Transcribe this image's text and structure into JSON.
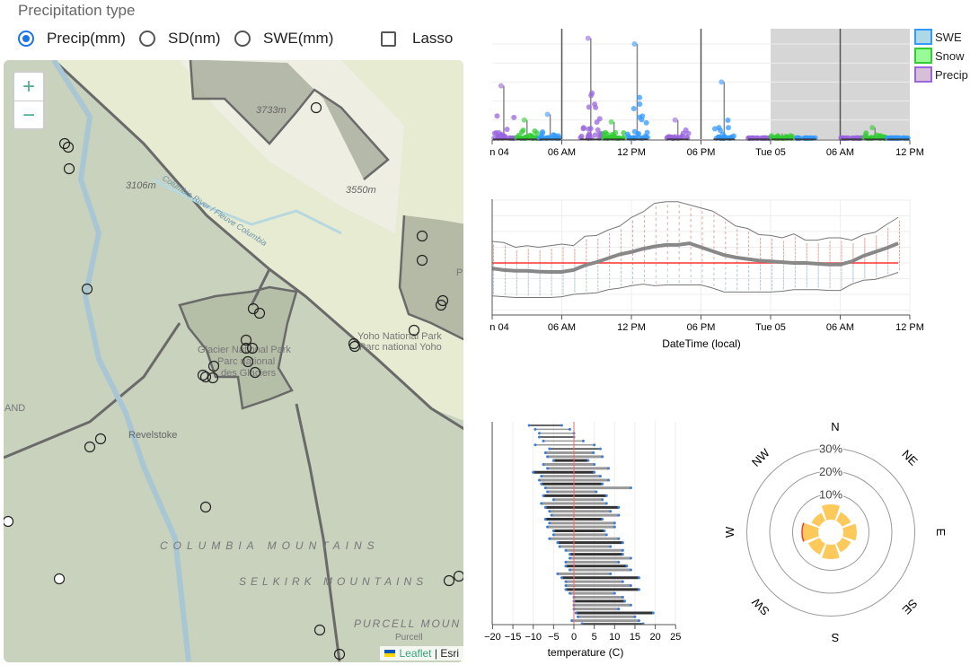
{
  "controls": {
    "title": "Precipitation type",
    "options": [
      {
        "label": "Precip(mm)",
        "checked": true
      },
      {
        "label": "SD(nm)",
        "checked": false
      },
      {
        "label": "SWE(mm)",
        "checked": false
      }
    ],
    "lasso_label": "Lasso",
    "lasso_checked": false
  },
  "map": {
    "zoom_in": "+",
    "zoom_out": "−",
    "labels": {
      "peak1": "3733m",
      "peak2": "3106m",
      "peak3": "3550m",
      "river": "Columbia River / Fleuve Columbia",
      "glacier1": "Glacier National Park",
      "glacier2": "Parc national",
      "glacier3": "des Glaciers",
      "yoho1": "Yoho National Park",
      "yoho2": "Parc national Yoho",
      "revelstoke": "Revelstoke",
      "columbia": "COLUMBIA MOUNTAINS",
      "selkirk": "SELKIRK MOUNTAINS",
      "purcell": "PURCELL MOUN",
      "purcell2": "Purcell",
      "edge_left": "AND",
      "edge_right": "P"
    },
    "attribution": {
      "leaflet": "Leaflet",
      "sep": "|",
      "esri": "Esri"
    }
  },
  "chart_data": [
    {
      "type": "scatter",
      "subtype": "jittered strip plot with whiskers",
      "x_ticks": [
        "n 04",
        "06 AM",
        "12 PM",
        "06 PM",
        "Tue 05",
        "06 AM",
        "12 PM"
      ],
      "x_range_hours": [
        0,
        36
      ],
      "shaded_from_tick": "Tue 05",
      "grid": true,
      "y_ticks_shown": false,
      "legend": {
        "placement": "right",
        "entries": [
          {
            "name": "SWE",
            "fill": "#add8e6",
            "stroke": "#3399ff"
          },
          {
            "name": "Snow",
            "fill": "#98fb98",
            "stroke": "#33cc33"
          },
          {
            "name": "Precip",
            "fill": "#d8bfd8",
            "stroke": "#9966dd"
          }
        ]
      },
      "groups": [
        {
          "series": "Precip",
          "hour": 1,
          "max": 2.8
        },
        {
          "series": "Snow",
          "hour": 3,
          "max": 1.0
        },
        {
          "series": "SWE",
          "hour": 5,
          "max": 1.3
        },
        {
          "series": "SWE",
          "hour": 6,
          "max": 7
        },
        {
          "series": "Precip",
          "hour": 8.5,
          "max": 5.3
        },
        {
          "series": "Snow",
          "hour": 10.5,
          "max": 0.9
        },
        {
          "series": "SWE",
          "hour": 12.5,
          "max": 5.0
        },
        {
          "series": "Precip",
          "hour": 16,
          "max": 1.0
        },
        {
          "series": "Snow",
          "hour": 18,
          "max": 7
        },
        {
          "series": "SWE",
          "hour": 20,
          "max": 3.0
        },
        {
          "series": "Precip",
          "hour": 23,
          "max": 0.05
        },
        {
          "series": "Snow",
          "hour": 25,
          "max": 0.3
        },
        {
          "series": "SWE",
          "hour": 27,
          "max": 0.05
        },
        {
          "series": "Precip",
          "hour": 30,
          "max": 7
        },
        {
          "series": "Precip",
          "hour": 31,
          "max": 0.05
        },
        {
          "series": "Snow",
          "hour": 33,
          "max": 0.6
        },
        {
          "series": "SWE",
          "hour": 35,
          "max": 0.05
        }
      ]
    },
    {
      "type": "line",
      "subtype": "median with min/max envelope and hourly point columns",
      "xlabel": "DateTime (local)",
      "x_ticks": [
        "n 04",
        "06 AM",
        "12 PM",
        "06 PM",
        "Tue 05",
        "06 AM",
        "12 PM"
      ],
      "x_range_hours": [
        0,
        36
      ],
      "y_ticks_shown": false,
      "ylim": [
        -3,
        7
      ],
      "reference_line": 0,
      "reference_color": "#ff3333",
      "grid": true,
      "hours": [
        0,
        1,
        2,
        3,
        4,
        5,
        6,
        7,
        8,
        9,
        10,
        11,
        12,
        13,
        14,
        15,
        16,
        17,
        18,
        19,
        20,
        21,
        22,
        23,
        24,
        25,
        26,
        27,
        28,
        29,
        30,
        31,
        32,
        33,
        34,
        35
      ],
      "series": [
        {
          "role": "median",
          "values": [
            -0.35,
            -0.45,
            -0.5,
            -0.5,
            -0.55,
            -0.57,
            -0.57,
            -0.45,
            -0.15,
            0.05,
            0.3,
            0.55,
            0.7,
            0.9,
            1.05,
            1.15,
            1.15,
            1.25,
            1.0,
            0.75,
            0.5,
            0.35,
            0.25,
            0.15,
            0.1,
            0.05,
            0.0,
            0.0,
            -0.05,
            -0.1,
            -0.1,
            0.1,
            0.45,
            0.7,
            0.95,
            1.25
          ]
        },
        {
          "role": "upper",
          "values": [
            1.37,
            1.3,
            1.0,
            1.1,
            1.0,
            1.1,
            1.2,
            1.1,
            1.7,
            1.75,
            2.1,
            2.35,
            2.9,
            3.25,
            3.8,
            3.9,
            3.9,
            3.7,
            3.5,
            3.3,
            2.85,
            2.35,
            2.2,
            1.8,
            1.75,
            1.6,
            1.85,
            1.45,
            1.45,
            1.6,
            1.6,
            1.45,
            1.8,
            1.95,
            2.45,
            2.9
          ]
        },
        {
          "role": "lower",
          "values": [
            -2.1,
            -2.15,
            -2.2,
            -2.2,
            -2.2,
            -2.2,
            -2.15,
            -2.0,
            -1.95,
            -1.9,
            -1.7,
            -1.6,
            -1.45,
            -1.35,
            -1.45,
            -1.4,
            -1.4,
            -1.4,
            -1.4,
            -1.6,
            -1.85,
            -1.85,
            -1.85,
            -1.85,
            -1.85,
            -1.8,
            -1.7,
            -1.7,
            -1.7,
            -1.75,
            -1.75,
            -1.35,
            -1.1,
            -1.05,
            -0.85,
            -0.6
          ]
        }
      ]
    },
    {
      "type": "bar",
      "subtype": "horizontal range bars (min-max)",
      "xlabel": "temperature (C)",
      "xlim": [
        -20,
        25
      ],
      "x_ticks": [
        "−20",
        "−15",
        "−10",
        "−5",
        "0",
        "5",
        "10",
        "15",
        "20",
        "25"
      ],
      "reference_line": 0,
      "grid": true,
      "ranges": [
        [
          -11,
          -3
        ],
        [
          -9.5,
          -1
        ],
        [
          -8.5,
          0
        ],
        [
          -8.5,
          0
        ],
        [
          -7.5,
          2.3
        ],
        [
          -9.5,
          5
        ],
        [
          -6,
          6.5
        ],
        [
          -7,
          4.8
        ],
        [
          -6.5,
          7
        ],
        [
          -5,
          3.5
        ],
        [
          -7.5,
          5
        ],
        [
          -6.5,
          8.5
        ],
        [
          -10,
          5
        ],
        [
          -8,
          6.5
        ],
        [
          -8.5,
          8.5
        ],
        [
          -8,
          7
        ],
        [
          -7,
          14
        ],
        [
          -6.5,
          5.5
        ],
        [
          -7.5,
          8
        ],
        [
          -5,
          7
        ],
        [
          -8,
          8
        ],
        [
          -7,
          11
        ],
        [
          -6,
          9
        ],
        [
          -5.5,
          11
        ],
        [
          -7,
          7
        ],
        [
          -6,
          10
        ],
        [
          -6.5,
          10
        ],
        [
          -5,
          7.5
        ],
        [
          -5,
          8
        ],
        [
          -6,
          11
        ],
        [
          -4,
          12
        ],
        [
          -3.5,
          9
        ],
        [
          -2,
          12
        ],
        [
          -1,
          12
        ],
        [
          -1,
          14
        ],
        [
          -2,
          11
        ],
        [
          -2,
          13
        ],
        [
          -1,
          14
        ],
        [
          -4,
          9
        ],
        [
          -3,
          16
        ],
        [
          -2,
          12
        ],
        [
          -2,
          14
        ],
        [
          -2,
          16
        ],
        [
          -1,
          10
        ],
        [
          0,
          12
        ],
        [
          0,
          12.5
        ],
        [
          0,
          14
        ],
        [
          0,
          11
        ],
        [
          0.5,
          19.5
        ],
        [
          1,
          15
        ],
        [
          -0.5,
          16
        ],
        [
          2,
          17
        ]
      ]
    },
    {
      "type": "pie",
      "subtype": "wind rose",
      "directions": [
        "N",
        "NE",
        "E",
        "SE",
        "S",
        "SW",
        "W",
        "NW"
      ],
      "values_percent": [
        5.5,
        3.1,
        4.7,
        3.1,
        5.1,
        4.3,
        5.9,
        2.7
      ],
      "ring_labels": [
        "10%",
        "20%",
        "30%"
      ],
      "color": "#fdc95a",
      "highlight_direction": "W",
      "highlight_color": "#ff3333"
    }
  ]
}
